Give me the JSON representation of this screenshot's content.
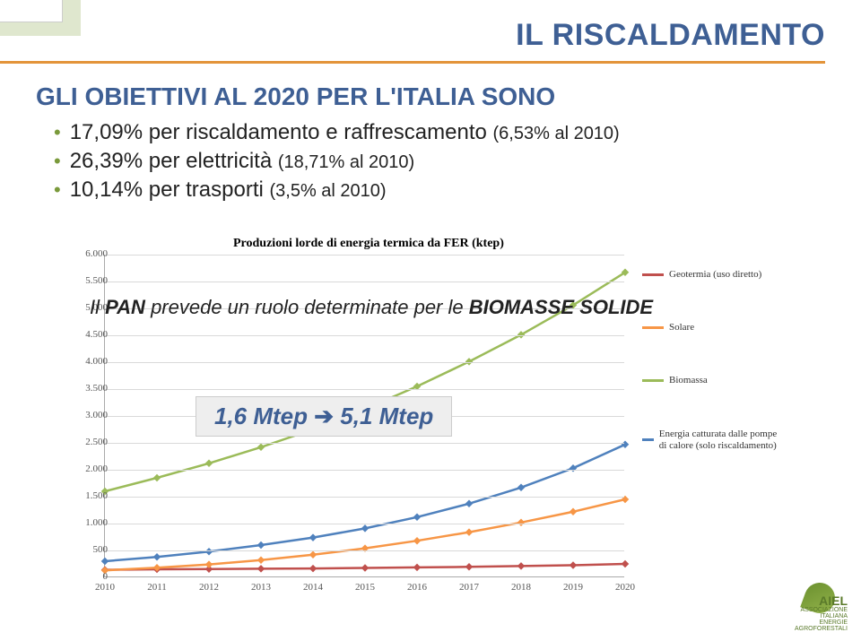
{
  "title": "IL RISCALDAMENTO",
  "heading": "GLI OBIETTIVI AL 2020 PER L'ITALIA SONO",
  "bullets": [
    {
      "main": "17,09% per riscaldamento e raffrescamento ",
      "sub": "(6,53% al 2010)"
    },
    {
      "main": "26,39% per elettricità ",
      "sub": "(18,71% al 2010)"
    },
    {
      "main": "10,14% per trasporti ",
      "sub": "(3,5% al 2010)"
    }
  ],
  "chart": {
    "title": "Produzioni lorde di energia termica da FER (ktep)",
    "type": "line",
    "ylim": [
      0,
      6000
    ],
    "ytick_step": 500,
    "yticks": [
      "0",
      "500",
      "1.000",
      "1.500",
      "2.000",
      "2.500",
      "3.000",
      "3.500",
      "4.000",
      "4.500",
      "5.000",
      "5.500",
      "6.000"
    ],
    "xlabels": [
      "2010",
      "2011",
      "2012",
      "2013",
      "2014",
      "2015",
      "2016",
      "2017",
      "2018",
      "2019",
      "2020"
    ],
    "grid_color": "#d9d9d9",
    "background_color": "#ffffff",
    "series": [
      {
        "name": "Geotermia (uso diretto)",
        "color": "#c0504d",
        "values": [
          140,
          150,
          155,
          160,
          165,
          175,
          185,
          195,
          210,
          225,
          250
        ]
      },
      {
        "name": "Solare",
        "color": "#f79646",
        "values": [
          130,
          180,
          240,
          320,
          420,
          540,
          680,
          840,
          1020,
          1220,
          1450
        ]
      },
      {
        "name": "Biomassa",
        "color": "#9bbb59",
        "values": [
          1600,
          1850,
          2120,
          2420,
          2750,
          3130,
          3550,
          4010,
          4510,
          5060,
          5670
        ]
      },
      {
        "name": "Energia catturata dalle pompe di calore (solo riscaldamento)",
        "color": "#4f81bd",
        "values": [
          300,
          380,
          480,
          600,
          740,
          910,
          1120,
          1370,
          1670,
          2030,
          2470
        ]
      }
    ]
  },
  "legend_labels": {
    "geo": "Geotermia (uso diretto)",
    "solar": "Solare",
    "bio": "Biomassa",
    "pump": "Energia catturata dalle pompe di calore (solo riscaldamento)"
  },
  "callout1_pre": "Il ",
  "callout1_em": "PAN",
  "callout1_post": " prevede un ruolo determinate per le ",
  "callout1_em2": "BIOMASSE SOLIDE",
  "callout2_v1": "1,6 Mtep",
  "callout2_arrow": " ➔ ",
  "callout2_v2": "5,1 Mtep",
  "logo": {
    "name": "AIEL",
    "sub1": "ASSOCIAZIONE ITALIANA",
    "sub2": "ENERGIE AGROFORESTALI"
  },
  "colors": {
    "title": "#3e5f94",
    "underline": "#e3943a",
    "bullet": "#7a9a3b"
  }
}
